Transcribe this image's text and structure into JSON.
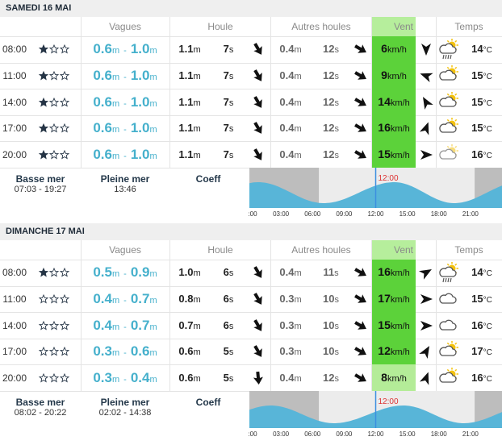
{
  "units": {
    "height": "m",
    "period": "s",
    "wind": "km/h",
    "temp": "°C",
    "sep": "-"
  },
  "columns": [
    "Vagues",
    "Houle",
    "Autres houles",
    "Vent",
    "Temps"
  ],
  "tide_labels": {
    "low": "Basse mer",
    "high": "Pleine mer",
    "coeff": "Coeff"
  },
  "tide_axis": [
    {
      "value": 0,
      "label": ":00"
    },
    {
      "value": 3,
      "label": "03:00"
    },
    {
      "value": 6,
      "label": "06:00"
    },
    {
      "value": 9,
      "label": "09:00"
    },
    {
      "value": 12,
      "label": "12:00"
    },
    {
      "value": 15,
      "label": "15:00"
    },
    {
      "value": 18,
      "label": "18:00"
    },
    {
      "value": 21,
      "label": "21:00"
    }
  ],
  "now": {
    "value": 12,
    "label": "12:00"
  },
  "days": [
    {
      "title": "SAMEDI 16 MAI",
      "rows": [
        {
          "time": "08:00",
          "stars": 1,
          "wave_min": "0.6",
          "wave_max": "1.0",
          "swell_height": "1.1",
          "swell_period": "7",
          "swell_dir": 150,
          "other_height": "0.4",
          "other_period": "12",
          "other_dir": 120,
          "wind": "6",
          "wind_dir": 180,
          "wind_color": "#5cd23a",
          "weather": "rain-sun",
          "temp": "14"
        },
        {
          "time": "11:00",
          "stars": 1,
          "wave_min": "0.6",
          "wave_max": "1.0",
          "swell_height": "1.1",
          "swell_period": "7",
          "swell_dir": 150,
          "other_height": "0.4",
          "other_period": "12",
          "other_dir": 120,
          "wind": "9",
          "wind_dir": 290,
          "wind_color": "#5cd23a",
          "weather": "sun-cloud",
          "temp": "15"
        },
        {
          "time": "14:00",
          "stars": 1,
          "wave_min": "0.6",
          "wave_max": "1.0",
          "swell_height": "1.1",
          "swell_period": "7",
          "swell_dir": 150,
          "other_height": "0.4",
          "other_period": "12",
          "other_dir": 120,
          "wind": "14",
          "wind_dir": 330,
          "wind_color": "#5cd23a",
          "weather": "sun-cloud",
          "temp": "15"
        },
        {
          "time": "17:00",
          "stars": 1,
          "wave_min": "0.6",
          "wave_max": "1.0",
          "swell_height": "1.1",
          "swell_period": "7",
          "swell_dir": 150,
          "other_height": "0.4",
          "other_period": "12",
          "other_dir": 120,
          "wind": "16",
          "wind_dir": 20,
          "wind_color": "#5cd23a",
          "weather": "sun-cloud",
          "temp": "15"
        },
        {
          "time": "20:00",
          "stars": 1,
          "wave_min": "0.6",
          "wave_max": "1.0",
          "swell_height": "1.1",
          "swell_period": "7",
          "swell_dir": 150,
          "other_height": "0.4",
          "other_period": "12",
          "other_dir": 120,
          "wind": "15",
          "wind_dir": 90,
          "wind_color": "#5cd23a",
          "weather": "sun-cloud-pale",
          "temp": "16"
        }
      ],
      "tide": {
        "low": "07:03 - 19:27",
        "high": "13:46",
        "night": [
          6.6,
          21.4
        ]
      }
    },
    {
      "title": "DIMANCHE 17 MAI",
      "rows": [
        {
          "time": "08:00",
          "stars": 1,
          "wave_min": "0.5",
          "wave_max": "0.9",
          "swell_height": "1.0",
          "swell_period": "6",
          "swell_dir": 150,
          "other_height": "0.4",
          "other_period": "11",
          "other_dir": 120,
          "wind": "16",
          "wind_dir": 60,
          "wind_color": "#5cd23a",
          "weather": "rain-sun",
          "temp": "14"
        },
        {
          "time": "11:00",
          "stars": 0,
          "wave_min": "0.4",
          "wave_max": "0.7",
          "swell_height": "0.8",
          "swell_period": "6",
          "swell_dir": 150,
          "other_height": "0.3",
          "other_period": "10",
          "other_dir": 120,
          "wind": "17",
          "wind_dir": 90,
          "wind_color": "#5cd23a",
          "weather": "cloud",
          "temp": "15"
        },
        {
          "time": "14:00",
          "stars": 0,
          "wave_min": "0.4",
          "wave_max": "0.7",
          "swell_height": "0.7",
          "swell_period": "6",
          "swell_dir": 150,
          "other_height": "0.3",
          "other_period": "10",
          "other_dir": 120,
          "wind": "15",
          "wind_dir": 90,
          "wind_color": "#5cd23a",
          "weather": "cloud",
          "temp": "16"
        },
        {
          "time": "17:00",
          "stars": 0,
          "wave_min": "0.3",
          "wave_max": "0.6",
          "swell_height": "0.6",
          "swell_period": "5",
          "swell_dir": 150,
          "other_height": "0.3",
          "other_period": "10",
          "other_dir": 120,
          "wind": "12",
          "wind_dir": 30,
          "wind_color": "#5cd23a",
          "weather": "sun-cloud",
          "temp": "17"
        },
        {
          "time": "20:00",
          "stars": 0,
          "wave_min": "0.3",
          "wave_max": "0.4",
          "swell_height": "0.6",
          "swell_period": "5",
          "swell_dir": 175,
          "other_height": "0.4",
          "other_period": "12",
          "other_dir": 120,
          "wind": "8",
          "wind_dir": 20,
          "wind_color": "#b4ec98",
          "weather": "sun-cloud",
          "temp": "16"
        }
      ],
      "tide": {
        "low": "08:02 - 20:22",
        "high": "02:02 - 14:38",
        "night": [
          6.6,
          21.4
        ]
      }
    }
  ]
}
